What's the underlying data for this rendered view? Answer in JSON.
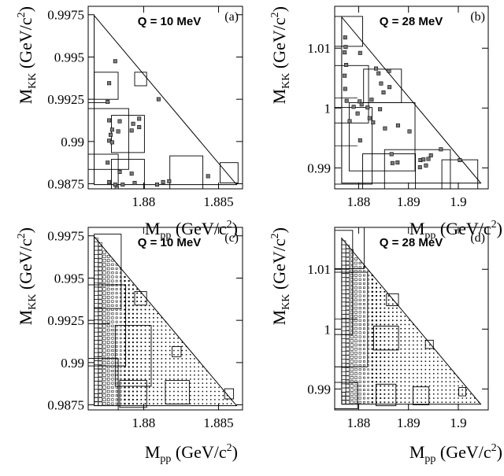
{
  "chart_data": [
    {
      "panel": "(a)",
      "type": "scatter",
      "title": "Q = 10 MeV",
      "xlabel": "M_pp (GeV/c^2)",
      "ylabel": "M_KK (GeV/c^2)",
      "xlim": [
        1.8763,
        1.8866
      ],
      "ylim": [
        0.9872,
        0.998
      ],
      "xticks": [
        {
          "v": 1.88,
          "label": "1.88"
        },
        {
          "v": 1.885,
          "label": "1.885"
        }
      ],
      "yticks": [
        {
          "v": 0.9875,
          "label": "0.9875"
        },
        {
          "v": 0.99,
          "label": "0.99"
        },
        {
          "v": 0.9925,
          "label": "0.9925"
        },
        {
          "v": 0.995,
          "label": "0.995"
        },
        {
          "v": 0.9975,
          "label": "0.9975"
        }
      ],
      "boundary": [
        [
          1.8767,
          0.99745
        ],
        [
          1.8767,
          0.98745
        ],
        [
          1.8862,
          0.98745
        ]
      ],
      "hlines": [
        0.9923
      ],
      "points": [
        [
          1.8781,
          0.99475
        ],
        [
          1.8777,
          0.99345
        ],
        [
          1.8776,
          0.99235
        ],
        [
          1.8777,
          0.99125
        ],
        [
          1.8779,
          0.9907
        ],
        [
          1.8778,
          0.9904
        ],
        [
          1.8777,
          0.99005
        ],
        [
          1.8779,
          0.98995
        ],
        [
          1.8784,
          0.9912
        ],
        [
          1.8783,
          0.9906
        ],
        [
          1.8776,
          0.98875
        ],
        [
          1.8784,
          0.9882
        ],
        [
          1.8777,
          0.9876
        ],
        [
          1.8781,
          0.98745
        ],
        [
          1.8782,
          0.98725
        ],
        [
          1.8786,
          0.98745
        ],
        [
          1.8793,
          0.99105
        ],
        [
          1.8792,
          0.99065
        ],
        [
          1.8797,
          0.99135
        ],
        [
          1.8797,
          0.99085
        ],
        [
          1.8792,
          0.9881
        ],
        [
          1.8794,
          0.98755
        ],
        [
          1.881,
          0.9925
        ],
        [
          1.8809,
          0.98745
        ],
        [
          1.8813,
          0.9876
        ],
        [
          1.8817,
          0.98765
        ],
        [
          1.8843,
          0.98795
        ]
      ],
      "boxes": [
        [
          1.8775,
          0.9933,
          0.0008,
          0.0008
        ],
        [
          1.8798,
          0.9937,
          0.0004,
          0.0004
        ],
        [
          1.8774,
          0.99015,
          0.0016,
          0.0018
        ],
        [
          1.87895,
          0.99045,
          0.0011,
          0.0011
        ],
        [
          1.8769,
          0.98775,
          0.0014,
          0.0015
        ],
        [
          1.87895,
          0.98785,
          0.0011,
          0.0011
        ],
        [
          1.88285,
          0.98805,
          0.0011,
          0.0011
        ],
        [
          1.8857,
          0.98815,
          0.0006,
          0.0006
        ]
      ]
    },
    {
      "panel": "(b)",
      "type": "scatter",
      "title": "Q = 28 MeV",
      "xlabel": "M_pp (GeV/c^2)",
      "ylabel": "M_KK (GeV/c^2)",
      "xlim": [
        1.8752,
        1.906
      ],
      "ylim": [
        0.9865,
        1.017
      ],
      "xticks": [
        {
          "v": 1.88,
          "label": "1.88"
        },
        {
          "v": 1.89,
          "label": "1.89"
        },
        {
          "v": 1.9,
          "label": "1.9"
        }
      ],
      "yticks": [
        {
          "v": 0.99,
          "label": "0.99"
        },
        {
          "v": 1.0,
          "label": "1"
        },
        {
          "v": 1.01,
          "label": "1.01"
        }
      ],
      "boundary": [
        [
          1.8766,
          1.0152
        ],
        [
          1.8766,
          0.98745
        ],
        [
          1.9045,
          0.98745
        ]
      ],
      "hlines": [
        1.0017,
        0.9937
      ],
      "points": [
        [
          1.8773,
          1.0118
        ],
        [
          1.8774,
          1.0102
        ],
        [
          1.8772,
          1.0093
        ],
        [
          1.8775,
          1.0072
        ],
        [
          1.8772,
          1.0054
        ],
        [
          1.8773,
          1.0032
        ],
        [
          1.8803,
          1.0092
        ],
        [
          1.8835,
          1.0066
        ],
        [
          1.884,
          1.0058
        ],
        [
          1.8845,
          1.0041
        ],
        [
          1.885,
          1.0026
        ],
        [
          1.8862,
          1.0035
        ],
        [
          1.8861,
          1.0062
        ],
        [
          1.8776,
          1.0012
        ],
        [
          1.879,
          1.0002
        ],
        [
          1.8802,
          1.0011
        ],
        [
          1.8798,
          0.9991
        ],
        [
          1.8818,
          1.0001
        ],
        [
          1.8822,
          0.9983
        ],
        [
          1.8829,
          0.9976
        ],
        [
          1.8826,
          1.0014
        ],
        [
          1.8806,
          1.0006
        ],
        [
          1.8803,
          0.9946
        ],
        [
          1.8782,
          0.9978
        ],
        [
          1.8843,
          0.9998
        ],
        [
          1.8853,
          0.9966
        ],
        [
          1.8879,
          0.9971
        ],
        [
          1.8902,
          0.9961
        ],
        [
          1.8866,
          0.9923
        ],
        [
          1.8868,
          0.9908
        ],
        [
          1.8878,
          0.9909
        ],
        [
          1.8923,
          0.9901
        ],
        [
          1.8924,
          0.9913
        ],
        [
          1.893,
          0.9914
        ],
        [
          1.8935,
          0.9904
        ],
        [
          1.894,
          0.9915
        ],
        [
          1.8945,
          0.9921
        ],
        [
          1.8965,
          0.9931
        ],
        [
          1.9003,
          0.9913
        ]
      ],
      "boxes": [
        [
          1.8778,
          1.0128,
          0.003,
          0.0025
        ],
        [
          1.8765,
          1.0023,
          0.0055,
          0.0048
        ],
        [
          1.8848,
          1.0037,
          0.0038,
          0.0028
        ],
        [
          1.8765,
          0.9937,
          0.0062,
          0.0064
        ],
        [
          1.8847,
          0.9952,
          0.0066,
          0.0057
        ],
        [
          1.8861,
          0.98775,
          0.0053,
          0.0046
        ],
        [
          1.8918,
          0.98745,
          0.0066,
          0.0056
        ],
        [
          1.9003,
          0.98825,
          0.0036,
          0.0031
        ]
      ]
    },
    {
      "panel": "(c)",
      "type": "scatter",
      "title": "Q = 10 MeV",
      "xlabel": "M_pp (GeV/c^2)",
      "ylabel": "M_KK (GeV/c^2)",
      "xlim": [
        1.8763,
        1.8866
      ],
      "ylim": [
        0.9872,
        0.998
      ],
      "xticks": [
        {
          "v": 1.88,
          "label": "1.88"
        },
        {
          "v": 1.885,
          "label": "1.885"
        }
      ],
      "yticks": [
        {
          "v": 0.9875,
          "label": "0.9875"
        },
        {
          "v": 0.99,
          "label": "0.99"
        },
        {
          "v": 0.9925,
          "label": "0.9925"
        },
        {
          "v": 0.995,
          "label": "0.995"
        },
        {
          "v": 0.9975,
          "label": "0.9975"
        }
      ],
      "boundary": [
        [
          1.8767,
          0.99745
        ],
        [
          1.8767,
          0.98745
        ],
        [
          1.8862,
          0.98745
        ]
      ],
      "hlines": [
        0.9923
      ],
      "grid_density": true,
      "boxes": [
        [
          1.8776,
          0.9954,
          0.0009,
          0.0022
        ],
        [
          1.8798,
          0.9938,
          0.0004,
          0.0004
        ],
        [
          1.8767,
          0.9922,
          0.0021,
          0.0024
        ],
        [
          1.8793,
          0.9904,
          0.0012,
          0.0018
        ],
        [
          1.8822,
          0.99065,
          0.0003,
          0.0003
        ],
        [
          1.8769,
          0.98785,
          0.0014,
          0.0024
        ],
        [
          1.8793,
          0.98815,
          0.0009,
          0.0008
        ],
        [
          1.88225,
          0.98825,
          0.0008,
          0.0007
        ],
        [
          1.8857,
          0.98815,
          0.0003,
          0.0003
        ]
      ]
    },
    {
      "panel": "(d)",
      "type": "scatter",
      "title": "Q = 28 MeV",
      "xlabel": "M_pp (GeV/c^2)",
      "ylabel": "M_KK (GeV/c^2)",
      "xlim": [
        1.8752,
        1.906
      ],
      "ylim": [
        0.9865,
        1.017
      ],
      "xticks": [
        {
          "v": 1.88,
          "label": "1.88"
        },
        {
          "v": 1.89,
          "label": "1.89"
        },
        {
          "v": 1.9,
          "label": "1.9"
        }
      ],
      "yticks": [
        {
          "v": 0.99,
          "label": "0.99"
        },
        {
          "v": 1.0,
          "label": "1"
        },
        {
          "v": 1.01,
          "label": "1.01"
        }
      ],
      "boundary": [
        [
          1.8766,
          1.0152
        ],
        [
          1.8766,
          0.98745
        ],
        [
          1.9045,
          0.98745
        ]
      ],
      "hlines": [
        1.0017,
        0.9937
      ],
      "grid_density": true,
      "boxes": [
        [
          1.8781,
          1.0136,
          0.003,
          0.0035
        ],
        [
          1.8758,
          1.0078,
          0.003,
          0.0087
        ],
        [
          1.8868,
          1.0049,
          0.0012,
          0.001
        ],
        [
          1.8773,
          1.0016,
          0.0045,
          0.0079
        ],
        [
          1.8855,
          0.9985,
          0.0025,
          0.002
        ],
        [
          1.8942,
          0.99745,
          0.0008,
          0.0007
        ],
        [
          1.8773,
          0.9889,
          0.0025,
          0.0022
        ],
        [
          1.8855,
          0.989,
          0.002,
          0.0018
        ],
        [
          1.8925,
          0.98885,
          0.0016,
          0.0015
        ],
        [
          1.9008,
          0.98955,
          0.0007,
          0.0007
        ]
      ]
    }
  ]
}
